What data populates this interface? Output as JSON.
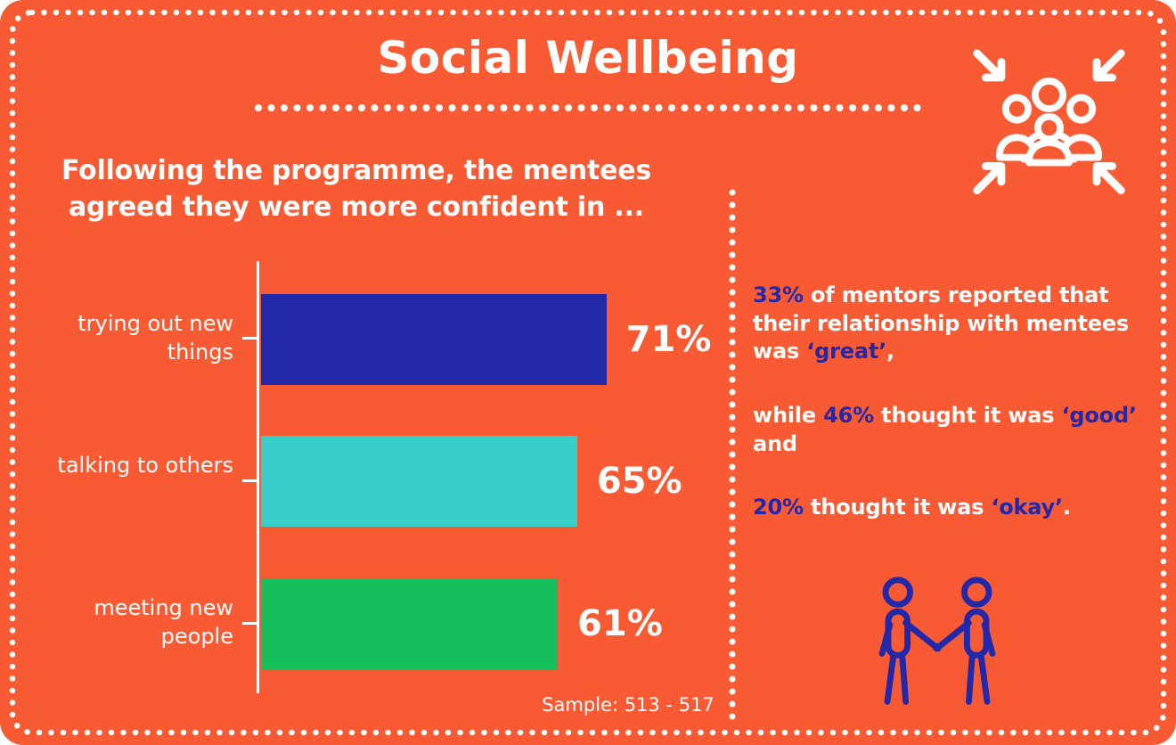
{
  "page": {
    "title": "Social Wellbeing",
    "bg_color": "#F85A33",
    "accent_color": "#2328A8",
    "text_color": "#FFFFFF"
  },
  "chart_data": {
    "type": "bar",
    "orientation": "horizontal",
    "title": "Following the programme, the mentees agreed they were more confident in ...",
    "categories": [
      "trying out new things",
      "talking to others",
      "meeting new people"
    ],
    "values": [
      71,
      65,
      61
    ],
    "value_labels": [
      "71%",
      "65%",
      "61%"
    ],
    "bar_colors": [
      "#2328A8",
      "#38CEC8",
      "#16BE5C"
    ],
    "xlim": [
      0,
      100
    ],
    "grid": false,
    "legend": false,
    "sample_note": "Sample: 513 - 517"
  },
  "mentor_stats": {
    "p1": {
      "s1": "33%",
      "s2": " of mentors reported that their relationship with mentees was ",
      "s3": "‘great’",
      "s4": ","
    },
    "p2": {
      "s1": "while ",
      "s2": "46%",
      "s3": " thought it was ",
      "s4": "‘good’",
      "s5": " and"
    },
    "p3": {
      "s1": "20%",
      "s2": " thought it was ",
      "s3": "‘okay’",
      "s4": "."
    }
  },
  "icons": {
    "people_group": "people-group-arrows-icon",
    "handshake": "handshake-icon"
  }
}
